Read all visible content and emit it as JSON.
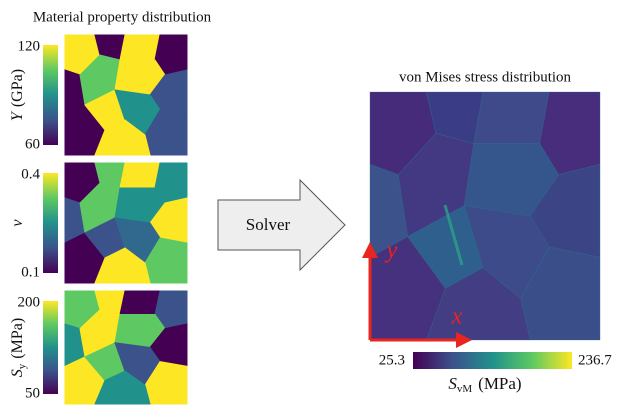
{
  "left_title": "Material property distribution",
  "panels": [
    {
      "label": {
        "symbol": "Y",
        "unit": "(GPa)"
      },
      "colorbar_max": "120",
      "colorbar_min": "60"
    },
    {
      "label": {
        "symbol": "ν"
      },
      "colorbar_max": "0.4",
      "colorbar_min": "0.1"
    },
    {
      "label": {
        "symbol": "S",
        "subscript": "y",
        "unit": "(MPa)"
      },
      "colorbar_max": "200",
      "colorbar_min": "50"
    }
  ],
  "arrow_label": "Solver",
  "right_title": "von Mises stress distribution",
  "axes": {
    "x": "x",
    "y": "y"
  },
  "colorbar": {
    "min": "25.3",
    "max": "236.7",
    "label": {
      "symbol": "S",
      "subscript": "vM",
      "unit": "(MPa)"
    }
  }
}
